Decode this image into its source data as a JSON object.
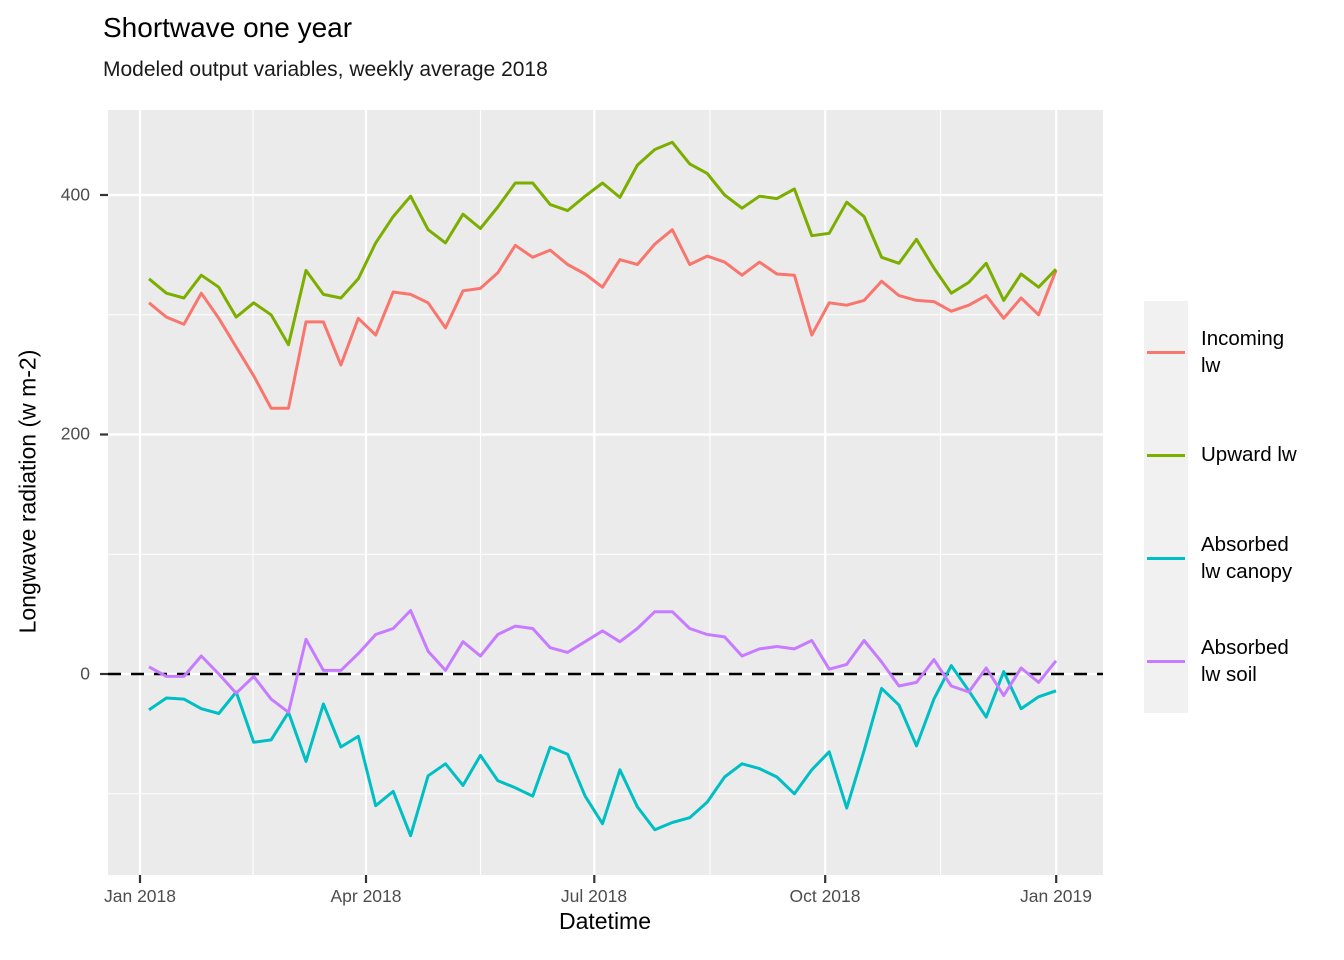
{
  "title": "Shortwave one year",
  "subtitle": "Modeled output variables, weekly average 2018",
  "axes": {
    "x": {
      "label": "Datetime",
      "ticks": [
        "Jan 2018",
        "Apr 2018",
        "Jul 2018",
        "Oct 2018",
        "Jan 2019"
      ]
    },
    "y": {
      "label": "Longwave radiation (w m-2)",
      "ticks": [
        "0",
        "200",
        "400"
      ]
    }
  },
  "chart_data": {
    "type": "line",
    "title": "Shortwave one year",
    "subtitle": "Modeled output variables, weekly average 2018",
    "xlabel": "Datetime",
    "ylabel": "Longwave radiation (w m-2)",
    "x_description": "53 weekly-average points spanning Jan 2018 to Jan 2019",
    "x_tick_labels": [
      "Jan 2018",
      "Apr 2018",
      "Jul 2018",
      "Oct 2018",
      "Jan 2019"
    ],
    "y_ticks": [
      0,
      200,
      400
    ],
    "ylim": [
      -168,
      471
    ],
    "grid": true,
    "legend_position": "right",
    "panel_background": "#EBEBEB",
    "grid_color": "#FFFFFF",
    "reference_line": {
      "y": 0,
      "style": "dashed",
      "color": "#000000"
    },
    "series": [
      {
        "name": "Incoming lw",
        "color": "#F8766D",
        "values": [
          310,
          298,
          292,
          318,
          297,
          273,
          249,
          222,
          222,
          294,
          294,
          258,
          297,
          283,
          319,
          317,
          310,
          289,
          320,
          322,
          335,
          358,
          348,
          354,
          342,
          334,
          323,
          346,
          342,
          359,
          371,
          342,
          349,
          344,
          333,
          344,
          334,
          333,
          283,
          310,
          308,
          312,
          328,
          316,
          312,
          311,
          303,
          308,
          316,
          297,
          314,
          300,
          337
        ]
      },
      {
        "name": "Upward lw",
        "color": "#7CAE00",
        "values": [
          330,
          318,
          314,
          333,
          323,
          298,
          310,
          300,
          275,
          337,
          317,
          314,
          330,
          360,
          382,
          399,
          371,
          360,
          384,
          372,
          390,
          410,
          410,
          392,
          387,
          399,
          410,
          398,
          425,
          438,
          444,
          426,
          418,
          400,
          389,
          399,
          397,
          405,
          366,
          368,
          394,
          382,
          348,
          343,
          363,
          339,
          318,
          327,
          343,
          312,
          334,
          323,
          338
        ]
      },
      {
        "name": "Absorbed lw canopy",
        "color": "#00BFC4",
        "values": [
          -30,
          -20,
          -21,
          -29,
          -33,
          -15,
          -57,
          -55,
          -32,
          -73,
          -25,
          -61,
          -52,
          -110,
          -98,
          -135,
          -85,
          -75,
          -93,
          -68,
          -89,
          -95,
          -102,
          -61,
          -67,
          -102,
          -125,
          -80,
          -111,
          -130,
          -124,
          -120,
          -107,
          -86,
          -75,
          -79,
          -86,
          -100,
          -80,
          -65,
          -112,
          -64,
          -12,
          -26,
          -60,
          -21,
          7,
          -14,
          -36,
          2,
          -29,
          -19,
          -14
        ]
      },
      {
        "name": "Absorbed lw soil",
        "color": "#C77CFF",
        "values": [
          6,
          -2,
          -2,
          15,
          0,
          -16,
          -2,
          -21,
          -32,
          29,
          3,
          3,
          17,
          33,
          38,
          53,
          19,
          3,
          27,
          15,
          33,
          40,
          38,
          22,
          18,
          27,
          36,
          27,
          38,
          52,
          52,
          38,
          33,
          31,
          15,
          21,
          23,
          21,
          28,
          4,
          8,
          28,
          10,
          -10,
          -7,
          12,
          -10,
          -15,
          5,
          -18,
          5,
          -7,
          11
        ]
      }
    ]
  }
}
